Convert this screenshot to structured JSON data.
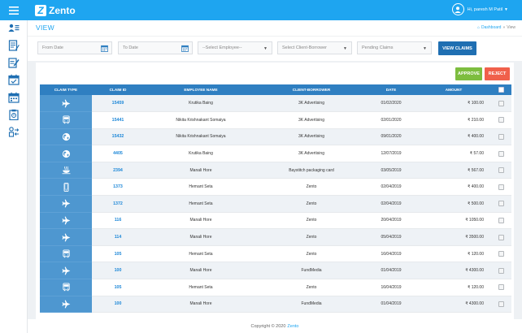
{
  "header": {
    "logo_letter": "Z",
    "logo_text": "Zento",
    "user_greeting": "Hi, paresh M Patil",
    "user_caret": "▼"
  },
  "page": {
    "title": "VIEW",
    "breadcrumb": {
      "home": "Dashboard",
      "separator": "»",
      "current": "View"
    }
  },
  "filters": {
    "from_date": "From Date",
    "to_date": "To Date",
    "employee": "--Select Employee--",
    "client": "Select Client-Borrower",
    "status": "Pending Claims",
    "view_button": "VIEW CLAIMS"
  },
  "actions": {
    "approve": "APPROVE",
    "reject": "REJECT"
  },
  "table": {
    "columns": [
      "CLAIM TYPE",
      "CLAIM ID",
      "EMPLOYEE NAME",
      "CLIENT-BORROWER",
      "DATE",
      "AMOUNT"
    ],
    "rows": [
      {
        "type": "plane-icon",
        "id": "15459",
        "employee": "Krutika Baing",
        "client": "3K Advertising",
        "date": "01/02/2020",
        "amount": "₹ 100.00"
      },
      {
        "type": "bus-icon",
        "id": "15441",
        "employee": "Nikita Krishnakant Somaiya",
        "client": "3K Advertising",
        "date": "02/01/2020",
        "amount": "₹ 210.00"
      },
      {
        "type": "globe-icon",
        "id": "15432",
        "employee": "Nikita Krishnakant Somaiya",
        "client": "3K Advertising",
        "date": "09/01/2020",
        "amount": "₹ 400.00"
      },
      {
        "type": "globe-icon",
        "id": "4405",
        "employee": "Krutika Baing",
        "client": "3K Advertising",
        "date": "12/07/2019",
        "amount": "₹ 57.00"
      },
      {
        "type": "food-icon",
        "id": "2394",
        "employee": "Manali Hore",
        "client": "Baystitch packaging card",
        "date": "03/05/2019",
        "amount": "₹ 567.00"
      },
      {
        "type": "phone-icon",
        "id": "1373",
        "employee": "Hemant Seta",
        "client": "Zento",
        "date": "02/04/2019",
        "amount": "₹ 400.00"
      },
      {
        "type": "plane-icon",
        "id": "1372",
        "employee": "Hemant Seta",
        "client": "Zento",
        "date": "02/04/2019",
        "amount": "₹ 500.00"
      },
      {
        "type": "plane-icon",
        "id": "116",
        "employee": "Manali Hore",
        "client": "Zento",
        "date": "20/04/2019",
        "amount": "₹ 1050.00"
      },
      {
        "type": "plane-icon",
        "id": "114",
        "employee": "Manali Hore",
        "client": "Zento",
        "date": "05/04/2019",
        "amount": "₹ 3500.00"
      },
      {
        "type": "bus-icon",
        "id": "105",
        "employee": "Hemant Seta",
        "client": "Zento",
        "date": "16/04/2019",
        "amount": "₹ 120.00"
      },
      {
        "type": "plane-icon",
        "id": "100",
        "employee": "Manali Hore",
        "client": "FundMedia",
        "date": "01/04/2019",
        "amount": "₹ 4300.00"
      },
      {
        "type": "bus-icon",
        "id": "105",
        "employee": "Hemant Seta",
        "client": "Zento",
        "date": "16/04/2019",
        "amount": "₹ 120.00"
      },
      {
        "type": "plane-icon",
        "id": "100",
        "employee": "Manali Hore",
        "client": "FundMedia",
        "date": "01/04/2019",
        "amount": "₹ 4300.00"
      }
    ]
  },
  "footer": {
    "text": "Copyright © 2020",
    "brand": "Zento"
  },
  "colors": {
    "primary": "#1ea5f0",
    "table_header": "#2f7fc1",
    "type_cell": "#4e97d0",
    "approve": "#7dbd3f",
    "reject": "#f0604b",
    "view_button": "#1f6fb2"
  },
  "sidebar_icons": [
    "users-icon",
    "claim-form-icon",
    "edit-icon",
    "calendar-check-icon",
    "calendar-icon",
    "clipboard-icon",
    "transfer-icon"
  ]
}
